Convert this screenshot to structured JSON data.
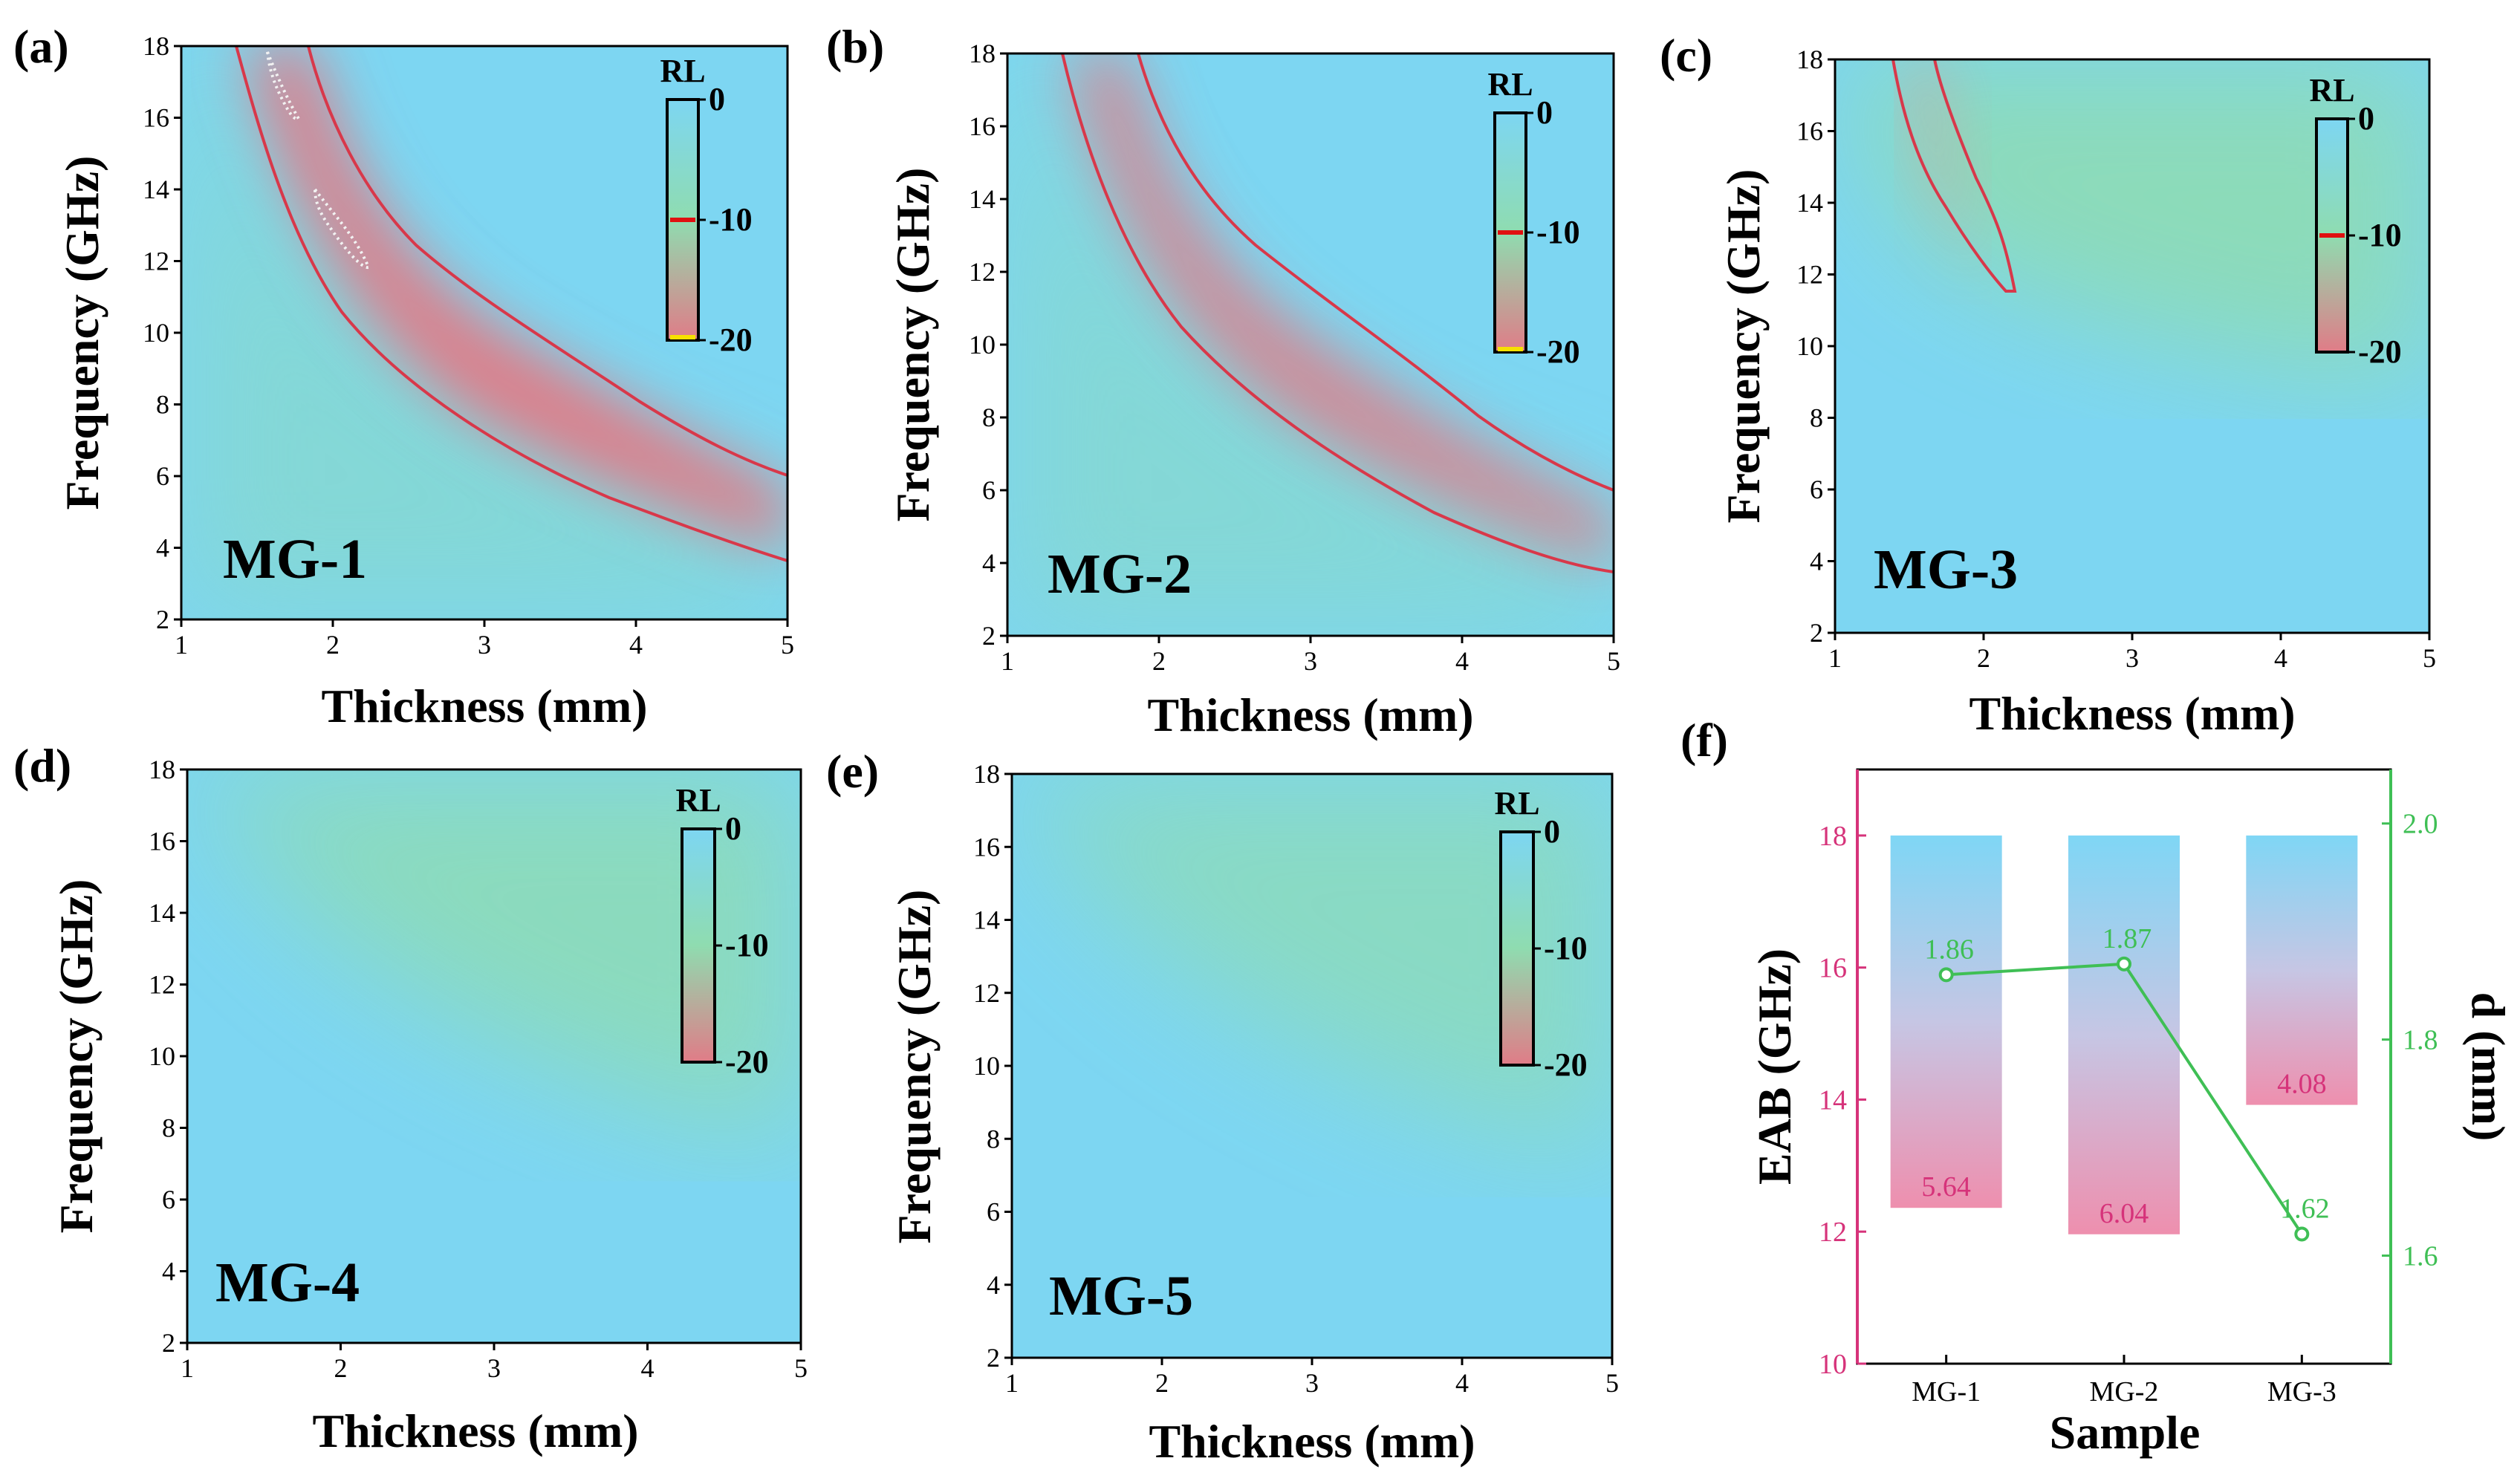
{
  "colors": {
    "blue": "#7dd6f2",
    "green": "#8fdcb0",
    "red": "#e07c87",
    "contour": "#d8384a",
    "left_axis": "#d6337a",
    "right_axis": "#3fbf55"
  },
  "colorbar": {
    "title": "RL",
    "ticks": [
      "0",
      "-10",
      "-20"
    ]
  },
  "chart_data": [
    {
      "panel_label": "(a)",
      "type": "heatmap",
      "sample": "MG-1",
      "xlabel": "Thickness (mm)",
      "ylabel": "Frequency (GHz)",
      "x_ticks": [
        "1",
        "2",
        "3",
        "4",
        "5"
      ],
      "y_ticks": [
        "2",
        "4",
        "6",
        "8",
        "10",
        "12",
        "14",
        "16",
        "18"
      ],
      "xlim": [
        1,
        5
      ],
      "ylim": [
        2,
        18
      ],
      "colorbar_range": [
        0,
        -20
      ],
      "min_rl": -20,
      "contour_minus10_outer": [
        [
          1.35,
          18
        ],
        [
          1.6,
          15
        ],
        [
          1.9,
          12
        ],
        [
          2.2,
          10
        ],
        [
          2.7,
          8.5
        ],
        [
          3.3,
          7.2
        ],
        [
          4,
          6.2
        ],
        [
          5,
          5.2
        ]
      ],
      "contour_minus10_inner": [
        [
          1.55,
          18
        ],
        [
          1.75,
          15
        ],
        [
          2.0,
          13
        ],
        [
          2.5,
          11
        ],
        [
          3.0,
          9.6
        ],
        [
          3.5,
          8.2
        ],
        [
          4,
          6.6
        ],
        [
          5,
          5.2
        ]
      ]
    },
    {
      "panel_label": "(b)",
      "type": "heatmap",
      "sample": "MG-2",
      "xlabel": "Thickness (mm)",
      "ylabel": "Frequency (GHz)",
      "x_ticks": [
        "1",
        "2",
        "3",
        "4",
        "5"
      ],
      "y_ticks": [
        "2",
        "4",
        "6",
        "8",
        "10",
        "12",
        "14",
        "16",
        "18"
      ],
      "xlim": [
        1,
        5
      ],
      "ylim": [
        2,
        18
      ],
      "colorbar_range": [
        0,
        -20
      ],
      "min_rl": -18
    },
    {
      "panel_label": "(c)",
      "type": "heatmap",
      "sample": "MG-3",
      "xlabel": "Thickness (mm)",
      "ylabel": "Frequency (GHz)",
      "x_ticks": [
        "1",
        "2",
        "3",
        "4",
        "5"
      ],
      "y_ticks": [
        "2",
        "4",
        "6",
        "8",
        "10",
        "12",
        "14",
        "16",
        "18"
      ],
      "xlim": [
        1,
        5
      ],
      "ylim": [
        2,
        18
      ],
      "colorbar_range": [
        0,
        -20
      ],
      "min_rl": -12
    },
    {
      "panel_label": "(d)",
      "type": "heatmap",
      "sample": "MG-4",
      "xlabel": "Thickness (mm)",
      "ylabel": "Frequency (GHz)",
      "x_ticks": [
        "1",
        "2",
        "3",
        "4",
        "5"
      ],
      "y_ticks": [
        "2",
        "4",
        "6",
        "8",
        "10",
        "12",
        "14",
        "16",
        "18"
      ],
      "xlim": [
        1,
        5
      ],
      "ylim": [
        2,
        18
      ],
      "colorbar_range": [
        0,
        -20
      ],
      "min_rl": -8
    },
    {
      "panel_label": "(e)",
      "type": "heatmap",
      "sample": "MG-5",
      "xlabel": "Thickness (mm)",
      "ylabel": "Frequency (GHz)",
      "x_ticks": [
        "1",
        "2",
        "3",
        "4",
        "5"
      ],
      "y_ticks": [
        "2",
        "4",
        "6",
        "8",
        "10",
        "12",
        "14",
        "16",
        "18"
      ],
      "xlim": [
        1,
        5
      ],
      "ylim": [
        2,
        18
      ],
      "colorbar_range": [
        0,
        -20
      ],
      "min_rl": -7
    },
    {
      "panel_label": "(f)",
      "type": "bar",
      "xlabel": "Sample",
      "ylabel": "EAB (GHz)",
      "y2label": "d (mm)",
      "categories": [
        "MG-1",
        "MG-2",
        "MG-3"
      ],
      "bars": [
        {
          "top": 18,
          "bottom": 12.36,
          "label": "5.64"
        },
        {
          "top": 18,
          "bottom": 11.96,
          "label": "6.04"
        },
        {
          "top": 18,
          "bottom": 13.92,
          "label": "4.08"
        }
      ],
      "ylim": [
        10,
        19
      ],
      "y_ticks": [
        "10",
        "12",
        "14",
        "16",
        "18"
      ],
      "y2lim": [
        1.5,
        2.05
      ],
      "y2_ticks": [
        "1.6",
        "1.8",
        "2.0"
      ],
      "line": {
        "values": [
          1.86,
          1.87,
          1.62
        ],
        "labels": [
          "1.86",
          "1.87",
          "1.62"
        ]
      }
    }
  ]
}
